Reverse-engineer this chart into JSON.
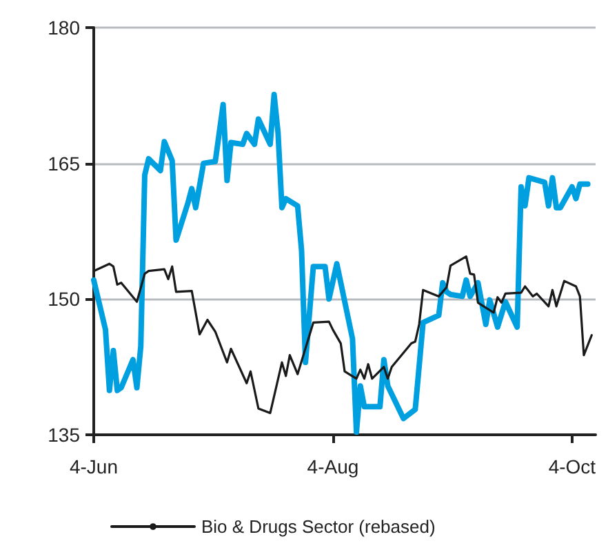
{
  "chart_data": {
    "type": "line",
    "xlim": [
      "--06-04",
      "--10-10"
    ],
    "xticks": [
      {
        "value": "--06-04",
        "label": "4-Jun"
      },
      {
        "value": "--08-04",
        "label": "4-Aug"
      },
      {
        "value": "--10-04",
        "label": "4-Oct"
      }
    ],
    "ylim": [
      135,
      180
    ],
    "yticks": [
      135,
      150,
      165,
      180
    ],
    "grid": "y",
    "legend": "bottom",
    "marker": "none",
    "line_style": "solid",
    "series": [
      {
        "color": "#00a0e0",
        "x": [
          "--06-04",
          "--06-07",
          "--06-08",
          "--06-09",
          "--06-10",
          "--06-11",
          "--06-14",
          "--06-15",
          "--06-16",
          "--06-17",
          "--06-18",
          "--06-21",
          "--06-22",
          "--06-24",
          "--06-25",
          "--06-28",
          "--06-29",
          "--06-30",
          "--07-02",
          "--07-05",
          "--07-07",
          "--07-08",
          "--07-09",
          "--07-12",
          "--07-13",
          "--07-15",
          "--07-16",
          "--07-19",
          "--07-20",
          "--07-21",
          "--07-22",
          "--07-23",
          "--07-26",
          "--07-27",
          "--07-28",
          "--07-30",
          "--08-02",
          "--08-03",
          "--08-05",
          "--08-09",
          "--08-10",
          "--08-11",
          "--08-12",
          "--08-16",
          "--08-17",
          "--08-18",
          "--08-22",
          "--08-25",
          "--08-27",
          "--08-31",
          "--09-01",
          "--09-02",
          "--09-03",
          "--09-06",
          "--09-07",
          "--09-08",
          "--09-10",
          "--09-12",
          "--09-13",
          "--09-15",
          "--09-17",
          "--09-20",
          "--09-21",
          "--09-22",
          "--09-23",
          "--09-27",
          "--09-28",
          "--09-29",
          "--09-30",
          "--10-01",
          "--10-04",
          "--10-05",
          "--10-06",
          "--10-08"
        ],
        "values": [
          152.1,
          146.6,
          139.9,
          144.3,
          139.9,
          140.2,
          143.3,
          140.2,
          144.8,
          163.7,
          165.5,
          164.2,
          167.4,
          165.3,
          156.5,
          160.6,
          162.2,
          160.1,
          165,
          165.2,
          171.5,
          163.1,
          167.3,
          167.1,
          168.3,
          167.1,
          169.9,
          167.1,
          172.6,
          168.4,
          160.1,
          161.1,
          160.3,
          155.4,
          143,
          153.6,
          153.6,
          150,
          153.9,
          145.6,
          135.3,
          140.4,
          138.1,
          138.1,
          143.3,
          140.4,
          136.8,
          137.8,
          147.4,
          148.2,
          151.8,
          150.8,
          150.5,
          150.3,
          152.1,
          150.3,
          151.8,
          147.2,
          149.9,
          146.9,
          149.7,
          146.9,
          162.4,
          160.3,
          163.4,
          162.9,
          160.3,
          163.4,
          160.1,
          160.1,
          162.4,
          161.1,
          162.7,
          162.7
        ]
      },
      {
        "name": "Bio & Drugs Sector (rebased)",
        "color": "#1a1a1a",
        "x": [
          "--06-04",
          "--06-08",
          "--06-09",
          "--06-10",
          "--06-11",
          "--06-15",
          "--06-17",
          "--06-18",
          "--06-22",
          "--06-23",
          "--06-24",
          "--06-25",
          "--06-29",
          "--07-01",
          "--07-03",
          "--07-05",
          "--07-08",
          "--07-09",
          "--07-13",
          "--07-14",
          "--07-16",
          "--07-19",
          "--07-22",
          "--07-23",
          "--07-24",
          "--07-26",
          "--07-30",
          "--08-03",
          "--08-04",
          "--08-06",
          "--08-07",
          "--08-10",
          "--08-11",
          "--08-12",
          "--08-13",
          "--08-14",
          "--08-17",
          "--08-18",
          "--08-19",
          "--08-24",
          "--08-25",
          "--08-26",
          "--08-27",
          "--08-31",
          "--09-02",
          "--09-03",
          "--09-07",
          "--09-08",
          "--09-09",
          "--09-10",
          "--09-14",
          "--09-15",
          "--09-16",
          "--09-17",
          "--09-21",
          "--09-22",
          "--09-24",
          "--09-25",
          "--09-28",
          "--09-29",
          "--09-30",
          "--10-02",
          "--10-05",
          "--10-06",
          "--10-07",
          "--10-09"
        ],
        "values": [
          153.1,
          153.9,
          153.6,
          151.6,
          151.8,
          149.7,
          152.8,
          153.1,
          153.3,
          152.2,
          153.6,
          150.8,
          150.9,
          146.1,
          147.7,
          146.4,
          143,
          144.5,
          140.7,
          142,
          137.9,
          137.4,
          143,
          141.5,
          143.8,
          141.7,
          147.4,
          147.5,
          146.6,
          145.1,
          142,
          141.2,
          142.2,
          141.2,
          142.8,
          141.2,
          142.5,
          141.2,
          142.5,
          145.1,
          145.3,
          147.2,
          151,
          150.3,
          151.3,
          153.7,
          154.7,
          152.8,
          152.7,
          149.6,
          148.5,
          150.2,
          149.6,
          150.6,
          150.7,
          151.4,
          150.3,
          150.6,
          149.2,
          151,
          149.2,
          152,
          151.4,
          150.3,
          143.8,
          146
        ]
      }
    ]
  }
}
